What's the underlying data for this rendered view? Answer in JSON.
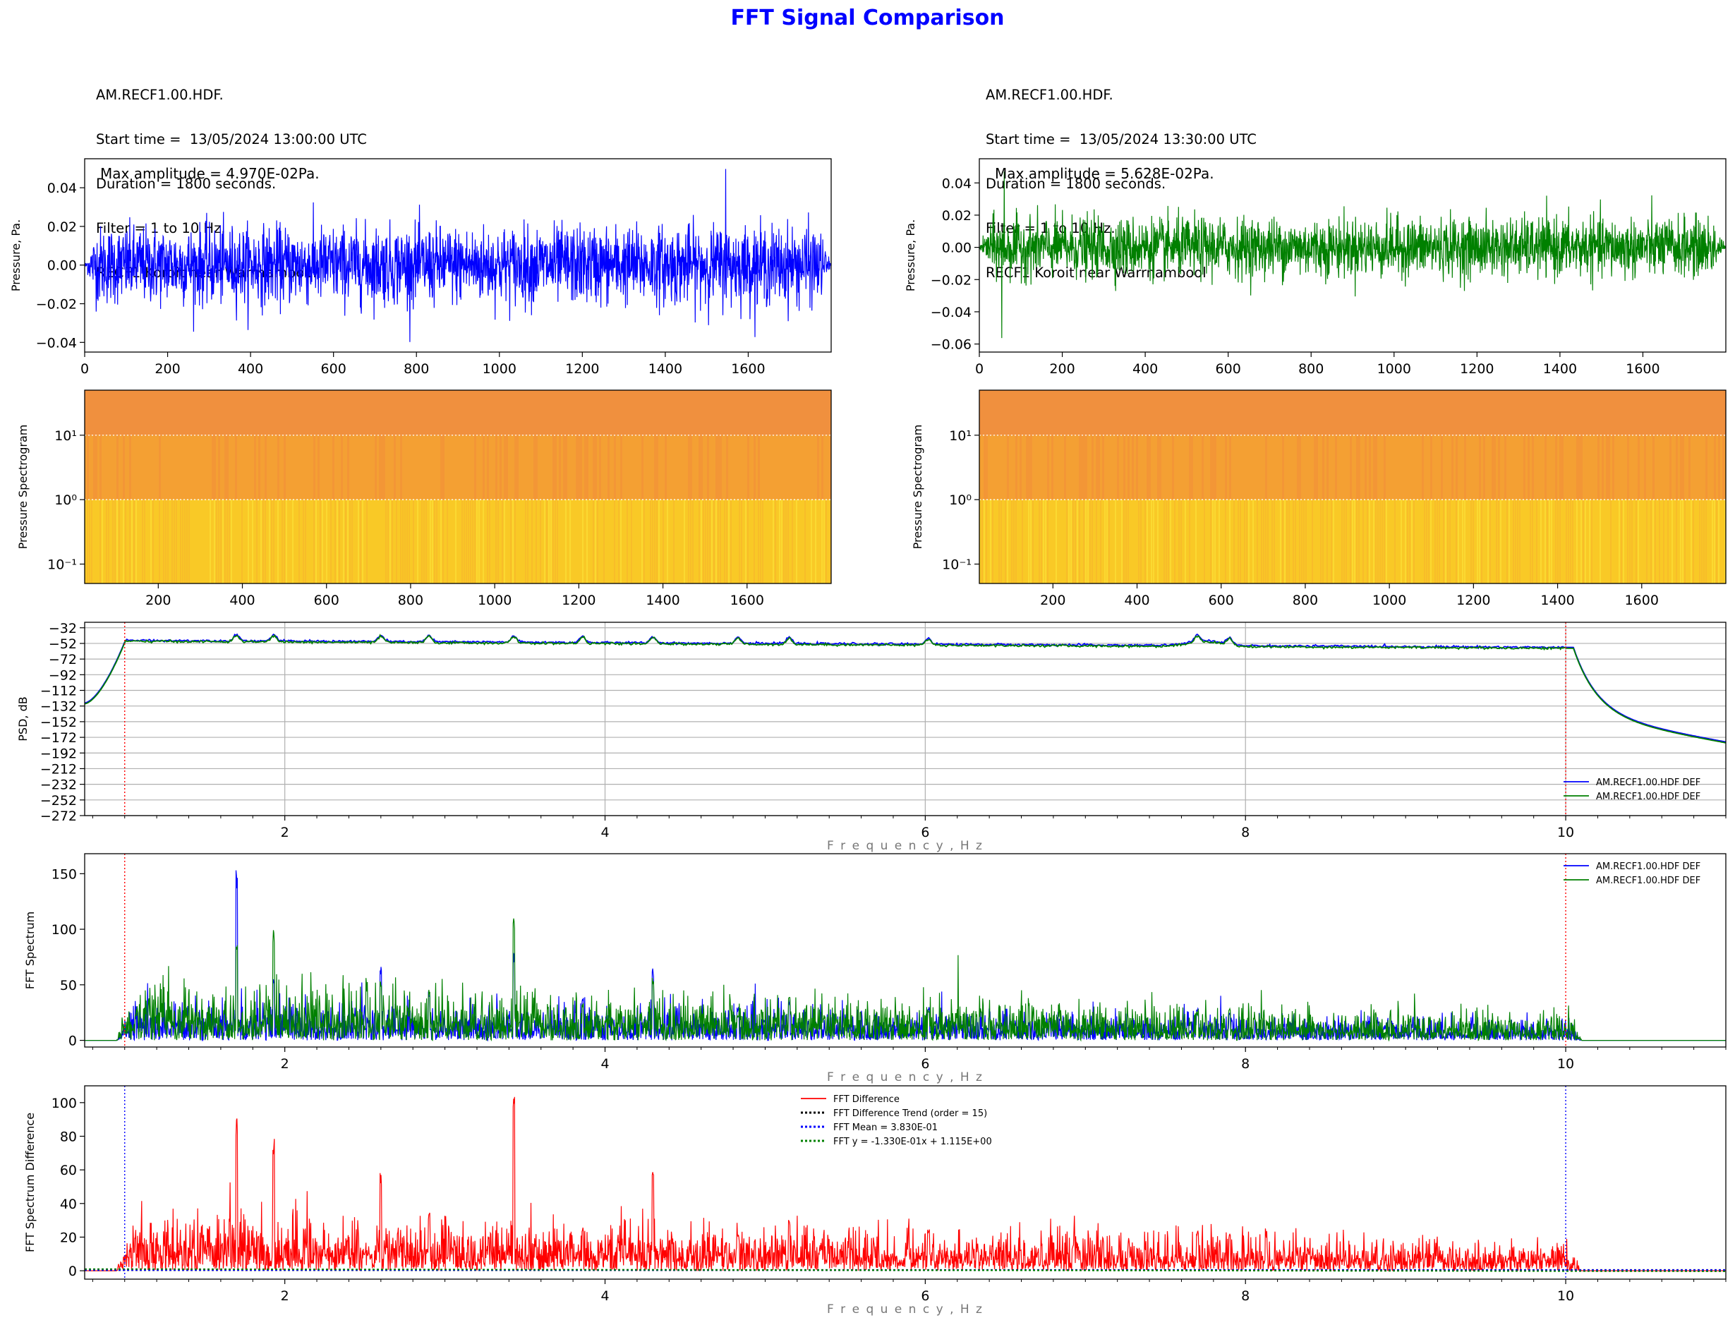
{
  "figure_title": "FFT Signal Comparison",
  "info_left": [
    "AM.RECF1.00.HDF.",
    "Start time =  13/05/2024 13:00:00 UTC",
    "Duration = 1800 seconds.",
    "Filter = 1 to 10 Hz.",
    "RECF1 Koroit near Warrnambool"
  ],
  "info_right": [
    "AM.RECF1.00.HDF.",
    "Start time =  13/05/2024 13:30:00 UTC",
    "Duration = 1800 seconds.",
    "Filter = 1 to 10 Hz.",
    "RECF1 Koroit near Warrnambool"
  ],
  "colors": {
    "blue": "#0000ff",
    "green": "#008000",
    "red": "#ff0000",
    "black": "#000000"
  },
  "chart_data": [
    {
      "id": "waveform_left",
      "type": "line",
      "ylabel": "Pressure, Pa.",
      "annotation": "Max amplitude = 4.970E-02Pa.",
      "xlim": [
        0,
        1800
      ],
      "ylim": [
        -0.045,
        0.055
      ],
      "xticks": [
        0,
        200,
        400,
        600,
        800,
        1000,
        1200,
        1400,
        1600
      ],
      "yticks": [
        -0.04,
        -0.02,
        0.0,
        0.02,
        0.04
      ],
      "ytick_labels": [
        "−0.04",
        "−0.02",
        "0.00",
        "0.02",
        "0.04"
      ],
      "series": [
        {
          "color": "#0000ff",
          "noise_sigma": 0.011,
          "max": 0.0497
        }
      ]
    },
    {
      "id": "waveform_right",
      "type": "line",
      "ylabel": "Pressure, Pa.",
      "annotation": "Max amplitude = 5.628E-02Pa.",
      "xlim": [
        0,
        1800
      ],
      "ylim": [
        -0.065,
        0.055
      ],
      "xticks": [
        0,
        200,
        400,
        600,
        800,
        1000,
        1200,
        1400,
        1600
      ],
      "yticks": [
        -0.06,
        -0.04,
        -0.02,
        0.0,
        0.02,
        0.04
      ],
      "ytick_labels": [
        "−0.06",
        "−0.04",
        "−0.02",
        "0.00",
        "0.02",
        "0.04"
      ],
      "series": [
        {
          "color": "#008000",
          "noise_sigma": 0.01,
          "min": -0.0563
        }
      ]
    },
    {
      "id": "spectrogram_left",
      "type": "heatmap",
      "ylabel": "Pressure Spectrogram",
      "yscale": "log",
      "xlim": [
        25,
        1800
      ],
      "ylim": [
        0.05,
        50
      ],
      "xticks": [
        200,
        400,
        600,
        800,
        1000,
        1200,
        1400,
        1600
      ],
      "ytick_labels": [
        "10⁻¹",
        "10⁰",
        "10¹"
      ],
      "yticks": [
        0.1,
        1,
        10
      ],
      "gridlines_y": [
        1,
        10
      ]
    },
    {
      "id": "spectrogram_right",
      "type": "heatmap",
      "ylabel": "Pressure Spectrogram",
      "yscale": "log",
      "xlim": [
        25,
        1800
      ],
      "ylim": [
        0.05,
        50
      ],
      "xticks": [
        200,
        400,
        600,
        800,
        1000,
        1200,
        1400,
        1600
      ],
      "ytick_labels": [
        "10⁻¹",
        "10⁰",
        "10¹"
      ],
      "yticks": [
        0.1,
        1,
        10
      ],
      "gridlines_y": [
        1,
        10
      ]
    },
    {
      "id": "psd",
      "type": "line",
      "ylabel": "PSD, dB",
      "xlabel": "Frequency, Hz",
      "xlim": [
        0.75,
        11.0
      ],
      "ylim": [
        -272,
        -25
      ],
      "xticks": [
        2,
        4,
        6,
        8,
        10
      ],
      "yticks": [
        -32,
        -52,
        -72,
        -92,
        -112,
        -132,
        -152,
        -172,
        -192,
        -212,
        -232,
        -252,
        -272
      ],
      "ytick_labels": [
        "−32",
        "−52",
        "−72",
        "−92",
        "−112",
        "−132",
        "−152",
        "−172",
        "−192",
        "−212",
        "−232",
        "−252",
        "−272"
      ],
      "vlines": [
        1,
        10
      ],
      "grid": true,
      "legend": "lower right",
      "series": [
        {
          "name": "AM.RECF1.00.HDF DEF",
          "color": "#0000ff"
        },
        {
          "name": "AM.RECF1.00.HDF DEF",
          "color": "#008000"
        }
      ],
      "peaks_hz": [
        1.7,
        1.93,
        2.6,
        2.9,
        3.43,
        3.86,
        4.3,
        4.83,
        5.15,
        6.02,
        7.7,
        7.9
      ]
    },
    {
      "id": "fft",
      "type": "line",
      "ylabel": "FFT Spectrum",
      "xlabel": "Frequency, Hz",
      "xlim": [
        0.75,
        11.0
      ],
      "ylim": [
        -6,
        168
      ],
      "xticks": [
        2,
        4,
        6,
        8,
        10
      ],
      "yticks": [
        0,
        50,
        100,
        150
      ],
      "vlines": [
        1,
        10
      ],
      "legend": "upper right",
      "series": [
        {
          "name": "AM.RECF1.00.HDF DEF",
          "color": "#0000ff",
          "peaks": [
            [
              1.7,
              160
            ],
            [
              1.93,
              55
            ],
            [
              2.6,
              68
            ],
            [
              2.9,
              45
            ],
            [
              3.43,
              80
            ],
            [
              3.86,
              40
            ],
            [
              4.3,
              67
            ],
            [
              4.83,
              30
            ],
            [
              5.15,
              38
            ],
            [
              6.02,
              32
            ],
            [
              7.7,
              29
            ],
            [
              7.9,
              25
            ]
          ]
        },
        {
          "name": "AM.RECF1.00.HDF DEF",
          "color": "#008000",
          "peaks": [
            [
              1.7,
              95
            ],
            [
              1.93,
              103
            ],
            [
              2.6,
              56
            ],
            [
              2.9,
              47
            ],
            [
              3.43,
              110
            ],
            [
              3.86,
              35
            ],
            [
              4.3,
              60
            ],
            [
              4.83,
              24
            ],
            [
              5.15,
              40
            ],
            [
              6.02,
              28
            ],
            [
              7.7,
              26
            ],
            [
              7.9,
              29
            ]
          ]
        }
      ]
    },
    {
      "id": "fft_difference",
      "type": "line",
      "ylabel": "FFT Spectrum Difference",
      "xlabel": "Frequency, Hz",
      "xlim": [
        0.75,
        11.0
      ],
      "ylim": [
        -5,
        110
      ],
      "xticks": [
        2,
        4,
        6,
        8,
        10
      ],
      "yticks": [
        0,
        20,
        40,
        60,
        80,
        100
      ],
      "vlines": [
        1,
        10
      ],
      "legend": "upper center",
      "series": [
        {
          "name": "FFT Difference",
          "color": "#ff0000",
          "style": "solid",
          "peaks": [
            [
              1.7,
              92
            ],
            [
              1.93,
              80
            ],
            [
              2.6,
              60
            ],
            [
              2.9,
              36
            ],
            [
              3.43,
              106
            ],
            [
              3.86,
              25
            ],
            [
              4.3,
              65
            ],
            [
              4.83,
              22
            ],
            [
              5.15,
              31
            ],
            [
              6.02,
              25
            ],
            [
              7.7,
              24
            ],
            [
              7.9,
              22
            ]
          ]
        },
        {
          "name": "FFT Difference Trend (order = 15)",
          "color": "#000000",
          "style": "dotted"
        },
        {
          "name": "FFT Mean = 3.830E-01",
          "color": "#0000ff",
          "style": "dotted",
          "value": 0.383
        },
        {
          "name": "FFT y = -1.330E-01x + 1.115E+00",
          "color": "#008000",
          "style": "dotted",
          "slope": -0.133,
          "intercept": 1.115
        }
      ]
    }
  ]
}
